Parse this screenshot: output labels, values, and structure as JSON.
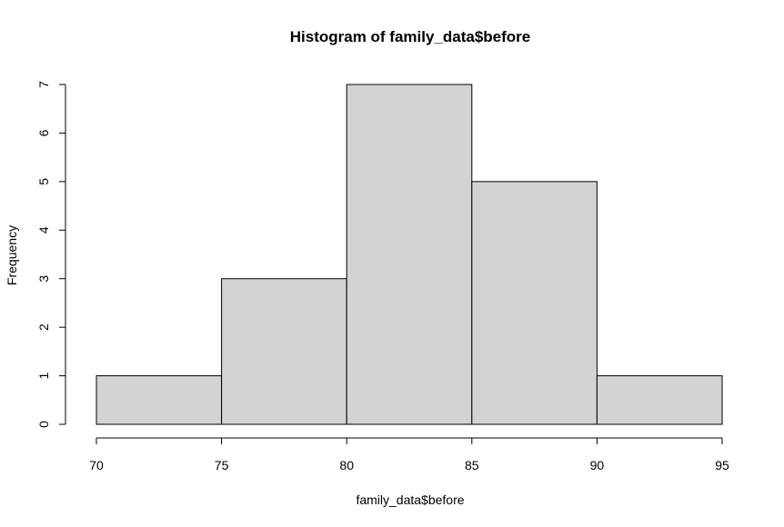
{
  "chart_data": {
    "type": "bar",
    "title": "Histogram of family_data$before",
    "xlabel": "family_data$before",
    "ylabel": "Frequency",
    "bins": [
      {
        "from": 70,
        "to": 75,
        "count": 1
      },
      {
        "from": 75,
        "to": 80,
        "count": 3
      },
      {
        "from": 80,
        "to": 85,
        "count": 7
      },
      {
        "from": 85,
        "to": 90,
        "count": 5
      },
      {
        "from": 90,
        "to": 95,
        "count": 1
      }
    ],
    "xlim": [
      70,
      95
    ],
    "ylim": [
      0,
      7
    ],
    "x_ticks": [
      "70",
      "75",
      "80",
      "85",
      "90",
      "95"
    ],
    "y_ticks": [
      "0",
      "1",
      "2",
      "3",
      "4",
      "5",
      "6",
      "7"
    ],
    "bar_fill": "#d3d3d3",
    "bar_stroke": "#000000",
    "grid": false,
    "legend": "none"
  }
}
